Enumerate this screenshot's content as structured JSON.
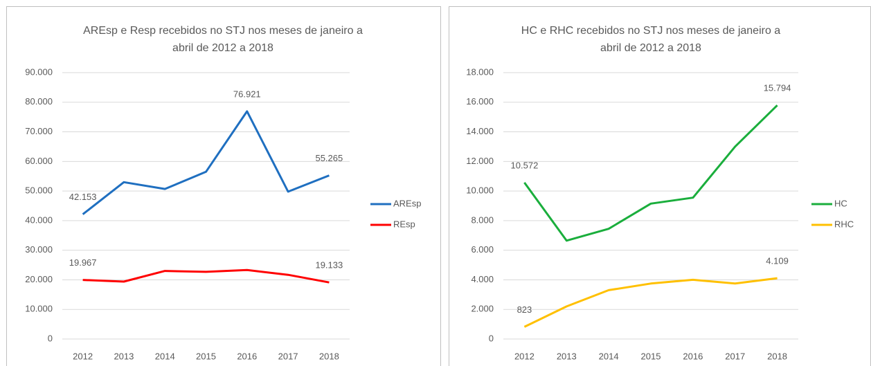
{
  "chart_data": [
    {
      "type": "line",
      "title": [
        "AREsp e Resp recebidos no STJ nos meses de janeiro a",
        "abril de 2012 a 2018"
      ],
      "categories": [
        "2012",
        "2013",
        "2014",
        "2015",
        "2016",
        "2017",
        "2018"
      ],
      "series": [
        {
          "name": "AREsp",
          "color": "#1f6fc0",
          "values": [
            42153,
            53000,
            50700,
            56500,
            76921,
            49800,
            55265
          ],
          "value_labels": [
            "42.153",
            null,
            null,
            null,
            "76.921",
            null,
            "55.265"
          ]
        },
        {
          "name": "REsp",
          "color": "#ff0000",
          "values": [
            19967,
            19400,
            23000,
            22700,
            23300,
            21700,
            19133
          ],
          "value_labels": [
            "19.967",
            null,
            null,
            null,
            null,
            null,
            "19.133"
          ]
        }
      ],
      "ylim": [
        0,
        90000
      ],
      "yticks": [
        0,
        {
          "value": 10000,
          "label": "10.000"
        },
        {
          "value": 20000,
          "label": "20.000"
        },
        {
          "value": 30000,
          "label": "30.000"
        },
        {
          "value": 40000,
          "label": "40.000"
        },
        {
          "value": 50000,
          "label": "50.000"
        },
        {
          "value": 60000,
          "label": "60.000"
        },
        {
          "value": 70000,
          "label": "70.000"
        },
        {
          "value": 80000,
          "label": "80.000"
        },
        {
          "value": 90000,
          "label": "90.000"
        }
      ],
      "grid": true,
      "legend": "right"
    },
    {
      "type": "line",
      "title": [
        "HC e RHC recebidos no STJ nos meses de janeiro a",
        "abril de 2012 a 2018"
      ],
      "categories": [
        "2012",
        "2013",
        "2014",
        "2015",
        "2016",
        "2017",
        "2018"
      ],
      "series": [
        {
          "name": "HC",
          "color": "#1aae3c",
          "values": [
            10572,
            6650,
            7450,
            9150,
            9550,
            13000,
            15794
          ],
          "value_labels": [
            "10.572",
            null,
            null,
            null,
            null,
            null,
            "15.794"
          ]
        },
        {
          "name": "RHC",
          "color": "#ffc000",
          "values": [
            823,
            2200,
            3300,
            3750,
            4000,
            3750,
            4109
          ],
          "value_labels": [
            "823",
            null,
            null,
            null,
            null,
            null,
            "4.109"
          ]
        }
      ],
      "ylim": [
        0,
        18000
      ],
      "yticks": [
        0,
        {
          "value": 2000,
          "label": "2.000"
        },
        {
          "value": 4000,
          "label": "4.000"
        },
        {
          "value": 6000,
          "label": "6.000"
        },
        {
          "value": 8000,
          "label": "8.000"
        },
        {
          "value": 10000,
          "label": "10.000"
        },
        {
          "value": 12000,
          "label": "12.000"
        },
        {
          "value": 14000,
          "label": "14.000"
        },
        {
          "value": 16000,
          "label": "16.000"
        },
        {
          "value": 18000,
          "label": "18.000"
        }
      ],
      "grid": true,
      "legend": "right"
    }
  ]
}
